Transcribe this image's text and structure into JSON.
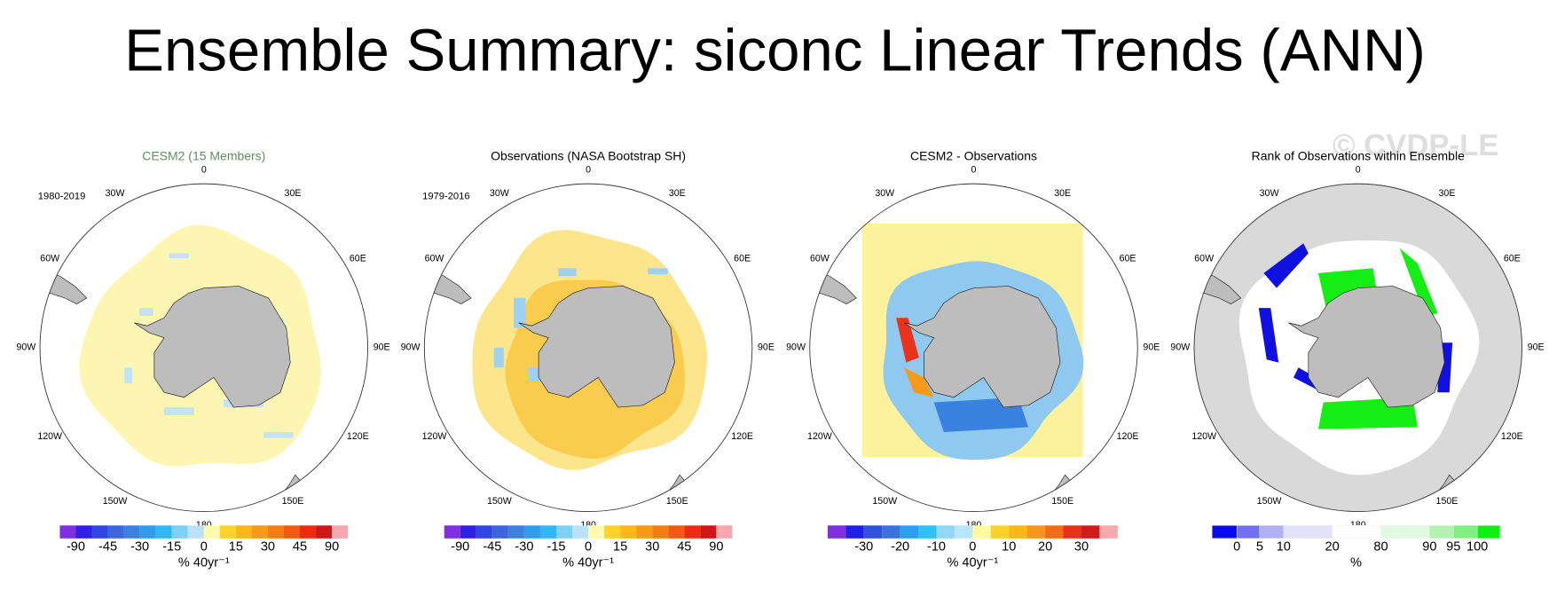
{
  "title": "Ensemble Summary: siconc Linear Trends (ANN)",
  "watermark": "© CVDP-LE",
  "longitude_labels": [
    "0",
    "30E",
    "60E",
    "90E",
    "120E",
    "150E",
    "180",
    "150W",
    "120W",
    "90W",
    "60W",
    "30W"
  ],
  "panels": [
    {
      "title": "CESM2 (15 Members)",
      "period": "1980-2019",
      "colorbar": {
        "labels": [
          "-90",
          "-45",
          "-30",
          "-15",
          "0",
          "15",
          "30",
          "45",
          "90"
        ],
        "units": "% 40yr⁻¹"
      }
    },
    {
      "title": "Observations (NASA Bootstrap SH)",
      "period": "1979-2016",
      "colorbar": {
        "labels": [
          "-90",
          "-45",
          "-30",
          "-15",
          "0",
          "15",
          "30",
          "45",
          "90"
        ],
        "units": "% 40yr⁻¹"
      }
    },
    {
      "title": "CESM2 - Observations",
      "colorbar": {
        "labels": [
          "-30",
          "-20",
          "-10",
          "0",
          "10",
          "20",
          "30"
        ],
        "units": "% 40yr⁻¹"
      }
    },
    {
      "title": "Rank of Observations within Ensemble",
      "colorbar": {
        "labels": [
          "0",
          "5",
          "10",
          "20",
          "80",
          "90",
          "95",
          "100"
        ],
        "units": "%"
      }
    }
  ]
}
